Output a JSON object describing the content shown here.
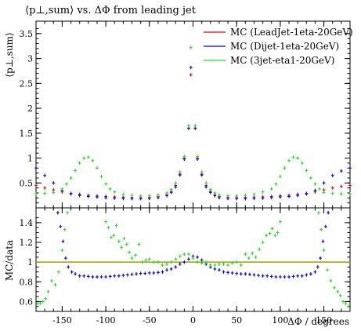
{
  "chart_data": [
    {
      "type": "scatter",
      "title": "⟨p⊥,sum⟩ vs. ΔΦ from leading jet",
      "ylabel": "⟨p⊥,sum⟩",
      "xlim": [
        -180,
        180
      ],
      "ylim": [
        0,
        3.75
      ],
      "yticks": [
        0.5,
        1,
        1.5,
        2,
        2.5,
        3,
        3.5
      ],
      "ytick_labels": [
        "0.5",
        "1",
        "1.5",
        "2",
        "2.5",
        "3",
        "3.5"
      ],
      "legend": "top-right",
      "series": [
        {
          "name": "MC (LeadJet-1eta-20GeV)",
          "color": "#e8000b",
          "x": [
            -180,
            -170,
            -160,
            -150,
            -140,
            -130,
            -120,
            -110,
            -100,
            -90,
            -80,
            -70,
            -60,
            -50,
            -40,
            -30,
            -25,
            -20,
            -15,
            -10,
            -5,
            -2.5,
            2.5,
            5,
            10,
            15,
            20,
            25,
            30,
            40,
            50,
            60,
            70,
            80,
            90,
            100,
            110,
            120,
            130,
            140,
            150,
            160,
            170,
            180
          ],
          "y": [
            0.45,
            0.4,
            0.36,
            0.32,
            0.29,
            0.27,
            0.25,
            0.24,
            0.23,
            0.22,
            0.215,
            0.21,
            0.21,
            0.215,
            0.23,
            0.27,
            0.33,
            0.45,
            0.68,
            1.0,
            1.6,
            2.67,
            1.6,
            1.0,
            0.68,
            0.45,
            0.33,
            0.27,
            0.23,
            0.215,
            0.21,
            0.21,
            0.215,
            0.22,
            0.23,
            0.24,
            0.25,
            0.27,
            0.29,
            0.32,
            0.36,
            0.4,
            0.43,
            0.45
          ]
        },
        {
          "name": "MC (Dijet-1eta-20GeV)",
          "color": "#0000e0",
          "x": [
            -180,
            -170,
            -160,
            -150,
            -140,
            -130,
            -120,
            -110,
            -100,
            -90,
            -80,
            -70,
            -60,
            -50,
            -40,
            -30,
            -25,
            -20,
            -15,
            -10,
            -5,
            -2.5,
            2.5,
            5,
            10,
            15,
            20,
            25,
            30,
            40,
            50,
            60,
            70,
            80,
            90,
            100,
            110,
            120,
            130,
            140,
            150,
            160,
            170,
            180
          ],
          "y": [
            0.8,
            0.65,
            0.5,
            0.35,
            0.28,
            0.25,
            0.23,
            0.22,
            0.205,
            0.195,
            0.19,
            0.185,
            0.185,
            0.19,
            0.205,
            0.245,
            0.31,
            0.42,
            0.66,
            0.98,
            1.6,
            2.82,
            1.6,
            0.98,
            0.66,
            0.42,
            0.31,
            0.245,
            0.205,
            0.19,
            0.185,
            0.185,
            0.19,
            0.195,
            0.205,
            0.22,
            0.23,
            0.25,
            0.28,
            0.35,
            0.5,
            0.65,
            0.74,
            0.8
          ]
        },
        {
          "name": "MC (3jet-eta1-20GeV)",
          "color": "#22dd22",
          "x": [
            -180,
            -170,
            -160,
            -150,
            -145,
            -140,
            -135,
            -130,
            -125,
            -120,
            -115,
            -110,
            -105,
            -100,
            -95,
            -90,
            -80,
            -70,
            -60,
            -50,
            -40,
            -30,
            -25,
            -20,
            -15,
            -10,
            -5,
            -2.5,
            2.5,
            5,
            10,
            15,
            20,
            25,
            30,
            40,
            50,
            60,
            70,
            80,
            90,
            95,
            100,
            105,
            110,
            115,
            120,
            125,
            130,
            135,
            140,
            145,
            150,
            160,
            170,
            180
          ],
          "y": [
            0.28,
            0.29,
            0.31,
            0.38,
            0.48,
            0.6,
            0.75,
            0.9,
            1.0,
            1.02,
            0.95,
            0.8,
            0.63,
            0.48,
            0.38,
            0.32,
            0.27,
            0.25,
            0.24,
            0.245,
            0.26,
            0.3,
            0.37,
            0.5,
            0.72,
            1.03,
            1.65,
            3.22,
            1.65,
            1.03,
            0.72,
            0.5,
            0.37,
            0.3,
            0.26,
            0.245,
            0.24,
            0.25,
            0.27,
            0.32,
            0.38,
            0.48,
            0.63,
            0.8,
            0.95,
            1.02,
            1.0,
            0.9,
            0.75,
            0.6,
            0.48,
            0.38,
            0.31,
            0.29,
            0.28,
            0.28
          ]
        }
      ]
    },
    {
      "type": "scatter",
      "xlabel": "ΔΦ / degrees",
      "ylabel": "MC/data",
      "xlim": [
        -180,
        180
      ],
      "ylim": [
        0.5,
        1.55
      ],
      "xticks": [
        -150,
        -100,
        -50,
        0,
        50,
        100,
        150
      ],
      "xtick_labels": [
        "-150",
        "-100",
        "-50",
        "0",
        "50",
        "100",
        "150"
      ],
      "yticks": [
        0.6,
        0.8,
        1,
        1.2,
        1.4
      ],
      "ytick_labels": [
        "0.6",
        "0.8",
        "1",
        "1.2",
        "1.4"
      ],
      "reference_line": {
        "y": 1,
        "color": "#a0a000"
      },
      "series": [
        {
          "name": "MC (Dijet-1eta-20GeV)",
          "color": "#0000e0",
          "x": [
            -155,
            -152,
            -149,
            -146,
            -143,
            -139,
            -135,
            -130,
            -125,
            -120,
            -115,
            -110,
            -105,
            -100,
            -95,
            -90,
            -85,
            -80,
            -75,
            -70,
            -65,
            -60,
            -55,
            -50,
            -45,
            -40,
            -35,
            -30,
            -25,
            -20,
            -15,
            -10,
            -5,
            0,
            5,
            10,
            15,
            20,
            25,
            30,
            35,
            40,
            45,
            50,
            55,
            60,
            65,
            70,
            75,
            80,
            85,
            90,
            95,
            100,
            105,
            110,
            115,
            120,
            125,
            130,
            135,
            140,
            143,
            146,
            149,
            152,
            155
          ],
          "y": [
            1.5,
            1.36,
            1.21,
            1.04,
            0.95,
            0.9,
            0.88,
            0.86,
            0.86,
            0.855,
            0.85,
            0.85,
            0.85,
            0.85,
            0.855,
            0.86,
            0.86,
            0.865,
            0.87,
            0.875,
            0.88,
            0.885,
            0.885,
            0.89,
            0.89,
            0.895,
            0.9,
            0.92,
            0.93,
            0.95,
            0.98,
            1.0,
            1.03,
            1.06,
            1.05,
            1.02,
            0.98,
            0.95,
            0.93,
            0.92,
            0.9,
            0.895,
            0.89,
            0.885,
            0.88,
            0.88,
            0.875,
            0.87,
            0.865,
            0.86,
            0.86,
            0.855,
            0.85,
            0.85,
            0.85,
            0.85,
            0.855,
            0.86,
            0.86,
            0.87,
            0.88,
            0.9,
            0.95,
            1.04,
            1.21,
            1.36,
            1.5
          ]
        },
        {
          "name": "MC (3jet-eta1-20GeV)",
          "color": "#22dd22",
          "x": [
            -178,
            -175,
            -172,
            -169,
            -166,
            -162,
            -158,
            -154,
            -150,
            -147,
            -144,
            -100,
            -97,
            -94,
            -91,
            -88,
            -85,
            -82,
            -79,
            -76,
            -73,
            -70,
            -66,
            -62,
            -58,
            -54,
            -50,
            -45,
            -40,
            -35,
            -30,
            -25,
            -20,
            -15,
            -10,
            -5,
            0,
            5,
            10,
            15,
            20,
            25,
            30,
            35,
            40,
            45,
            50,
            55,
            60,
            64,
            68,
            72,
            76,
            80,
            84,
            88,
            91,
            94,
            97,
            100,
            144,
            147,
            150,
            154,
            158,
            162,
            166,
            169,
            172,
            175,
            178
          ],
          "y": [
            0.58,
            0.58,
            0.6,
            0.63,
            0.7,
            0.81,
            0.77,
            0.9,
            1.12,
            1.33,
            1.5,
            1.41,
            1.35,
            1.25,
            1.27,
            1.37,
            1.21,
            1.15,
            1.24,
            1.18,
            1.1,
            1.04,
            1.07,
            1.18,
            1.0,
            1.02,
            1.03,
            1.0,
            1.0,
            0.97,
            0.98,
            1.0,
            1.03,
            1.06,
            1.08,
            1.08,
            1.04,
            1.0,
            0.99,
            1.0,
            0.97,
            0.97,
            0.98,
            0.98,
            0.97,
            0.99,
            1.0,
            0.97,
            1.08,
            1.04,
            1.09,
            1.05,
            1.13,
            1.2,
            1.27,
            1.29,
            1.34,
            1.27,
            1.3,
            1.41,
            1.5,
            1.33,
            1.12,
            0.92,
            0.81,
            0.74,
            0.7,
            0.66,
            0.6,
            0.58,
            0.55
          ]
        }
      ]
    }
  ]
}
